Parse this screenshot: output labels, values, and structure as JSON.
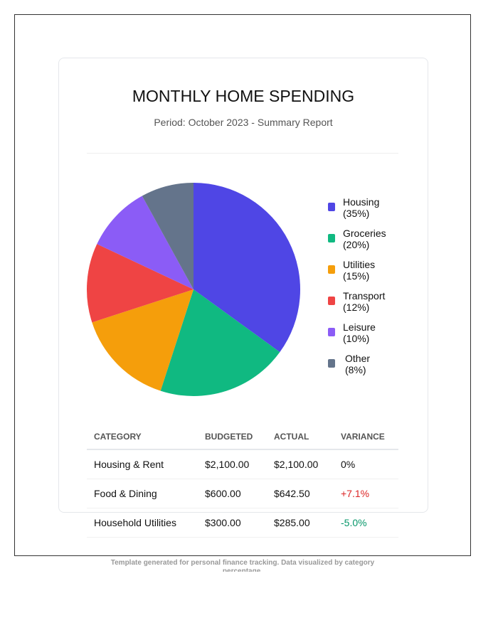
{
  "header": {
    "title": "MONTHLY HOME SPENDING",
    "subtitle": "Period: October 2023 - Summary Report"
  },
  "chart_data": {
    "type": "pie",
    "categories": [
      "Housing",
      "Groceries",
      "Utilities",
      "Transport",
      "Leisure",
      "Other"
    ],
    "values": [
      35,
      20,
      15,
      12,
      10,
      8
    ],
    "colors": [
      "#4f46e5",
      "#10b981",
      "#f59e0b",
      "#ef4444",
      "#8b5cf6",
      "#64748b"
    ],
    "legend_labels": [
      "(35%)",
      "(20%)",
      "(15%)",
      "(12%)",
      "(10%)",
      "(8%)"
    ],
    "legend_placement": "right"
  },
  "table": {
    "headers": [
      "CATEGORY",
      "BUDGETED",
      "ACTUAL",
      "VARIANCE"
    ],
    "rows": [
      {
        "category": "Housing & Rent",
        "budgeted": "$2,100.00",
        "actual": "$2,100.00",
        "variance": "0%",
        "variance_color": "#111111"
      },
      {
        "category": "Food & Dining",
        "budgeted": "$600.00",
        "actual": "$642.50",
        "variance": "+7.1%",
        "variance_color": "#dc2626"
      },
      {
        "category": "Household Utilities",
        "budgeted": "$300.00",
        "actual": "$285.00",
        "variance": "-5.0%",
        "variance_color": "#059669"
      }
    ]
  },
  "footer": {
    "text": "Template generated for personal finance tracking. Data visualized by category percentage."
  }
}
